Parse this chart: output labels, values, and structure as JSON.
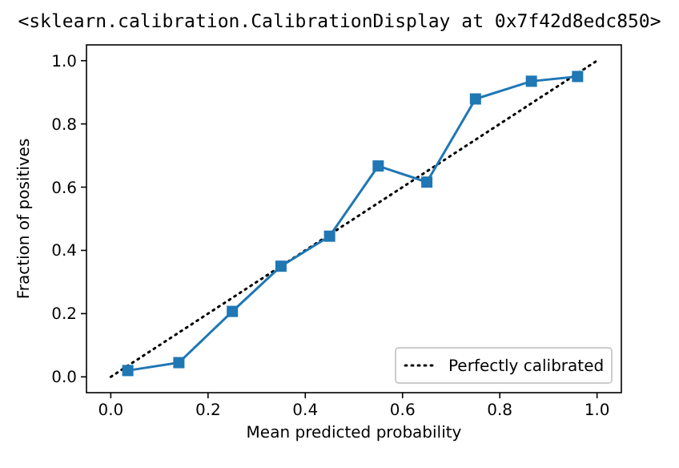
{
  "chart_data": {
    "type": "line",
    "title": "<sklearn.calibration.CalibrationDisplay at 0x7f42d8edc850>",
    "xlabel": "Mean predicted probability",
    "ylabel": "Fraction of positives",
    "xlim": [
      -0.05,
      1.05
    ],
    "ylim": [
      -0.05,
      1.05
    ],
    "xticks": [
      {
        "value": 0,
        "label": "0.0"
      },
      {
        "value": 0.2,
        "label": "0.2"
      },
      {
        "value": 0.4,
        "label": "0.4"
      },
      {
        "value": 0.6,
        "label": "0.6"
      },
      {
        "value": 0.8,
        "label": "0.8"
      },
      {
        "value": 1,
        "label": "1.0"
      }
    ],
    "yticks": [
      {
        "value": 0,
        "label": "0.0"
      },
      {
        "value": 0.2,
        "label": "0.2"
      },
      {
        "value": 0.4,
        "label": "0.4"
      },
      {
        "value": 0.6,
        "label": "0.6"
      },
      {
        "value": 0.8,
        "label": "0.8"
      },
      {
        "value": 1,
        "label": "1.0"
      }
    ],
    "legend": "bottom right",
    "grid": false,
    "series": [
      {
        "name": "Perfectly calibrated",
        "color": "#000000",
        "x": [
          0,
          1
        ],
        "values": [
          0,
          1
        ],
        "line_style": "dotted",
        "marker": "none"
      },
      {
        "color": "#1f77b4",
        "x": [
          0.035,
          0.14,
          0.25,
          0.35,
          0.45,
          0.55,
          0.65,
          0.75,
          0.865,
          0.96
        ],
        "values": [
          0.02,
          0.045,
          0.207,
          0.35,
          0.445,
          0.667,
          0.616,
          0.879,
          0.935,
          0.95
        ],
        "line_style": "solid",
        "marker": "square"
      }
    ]
  }
}
